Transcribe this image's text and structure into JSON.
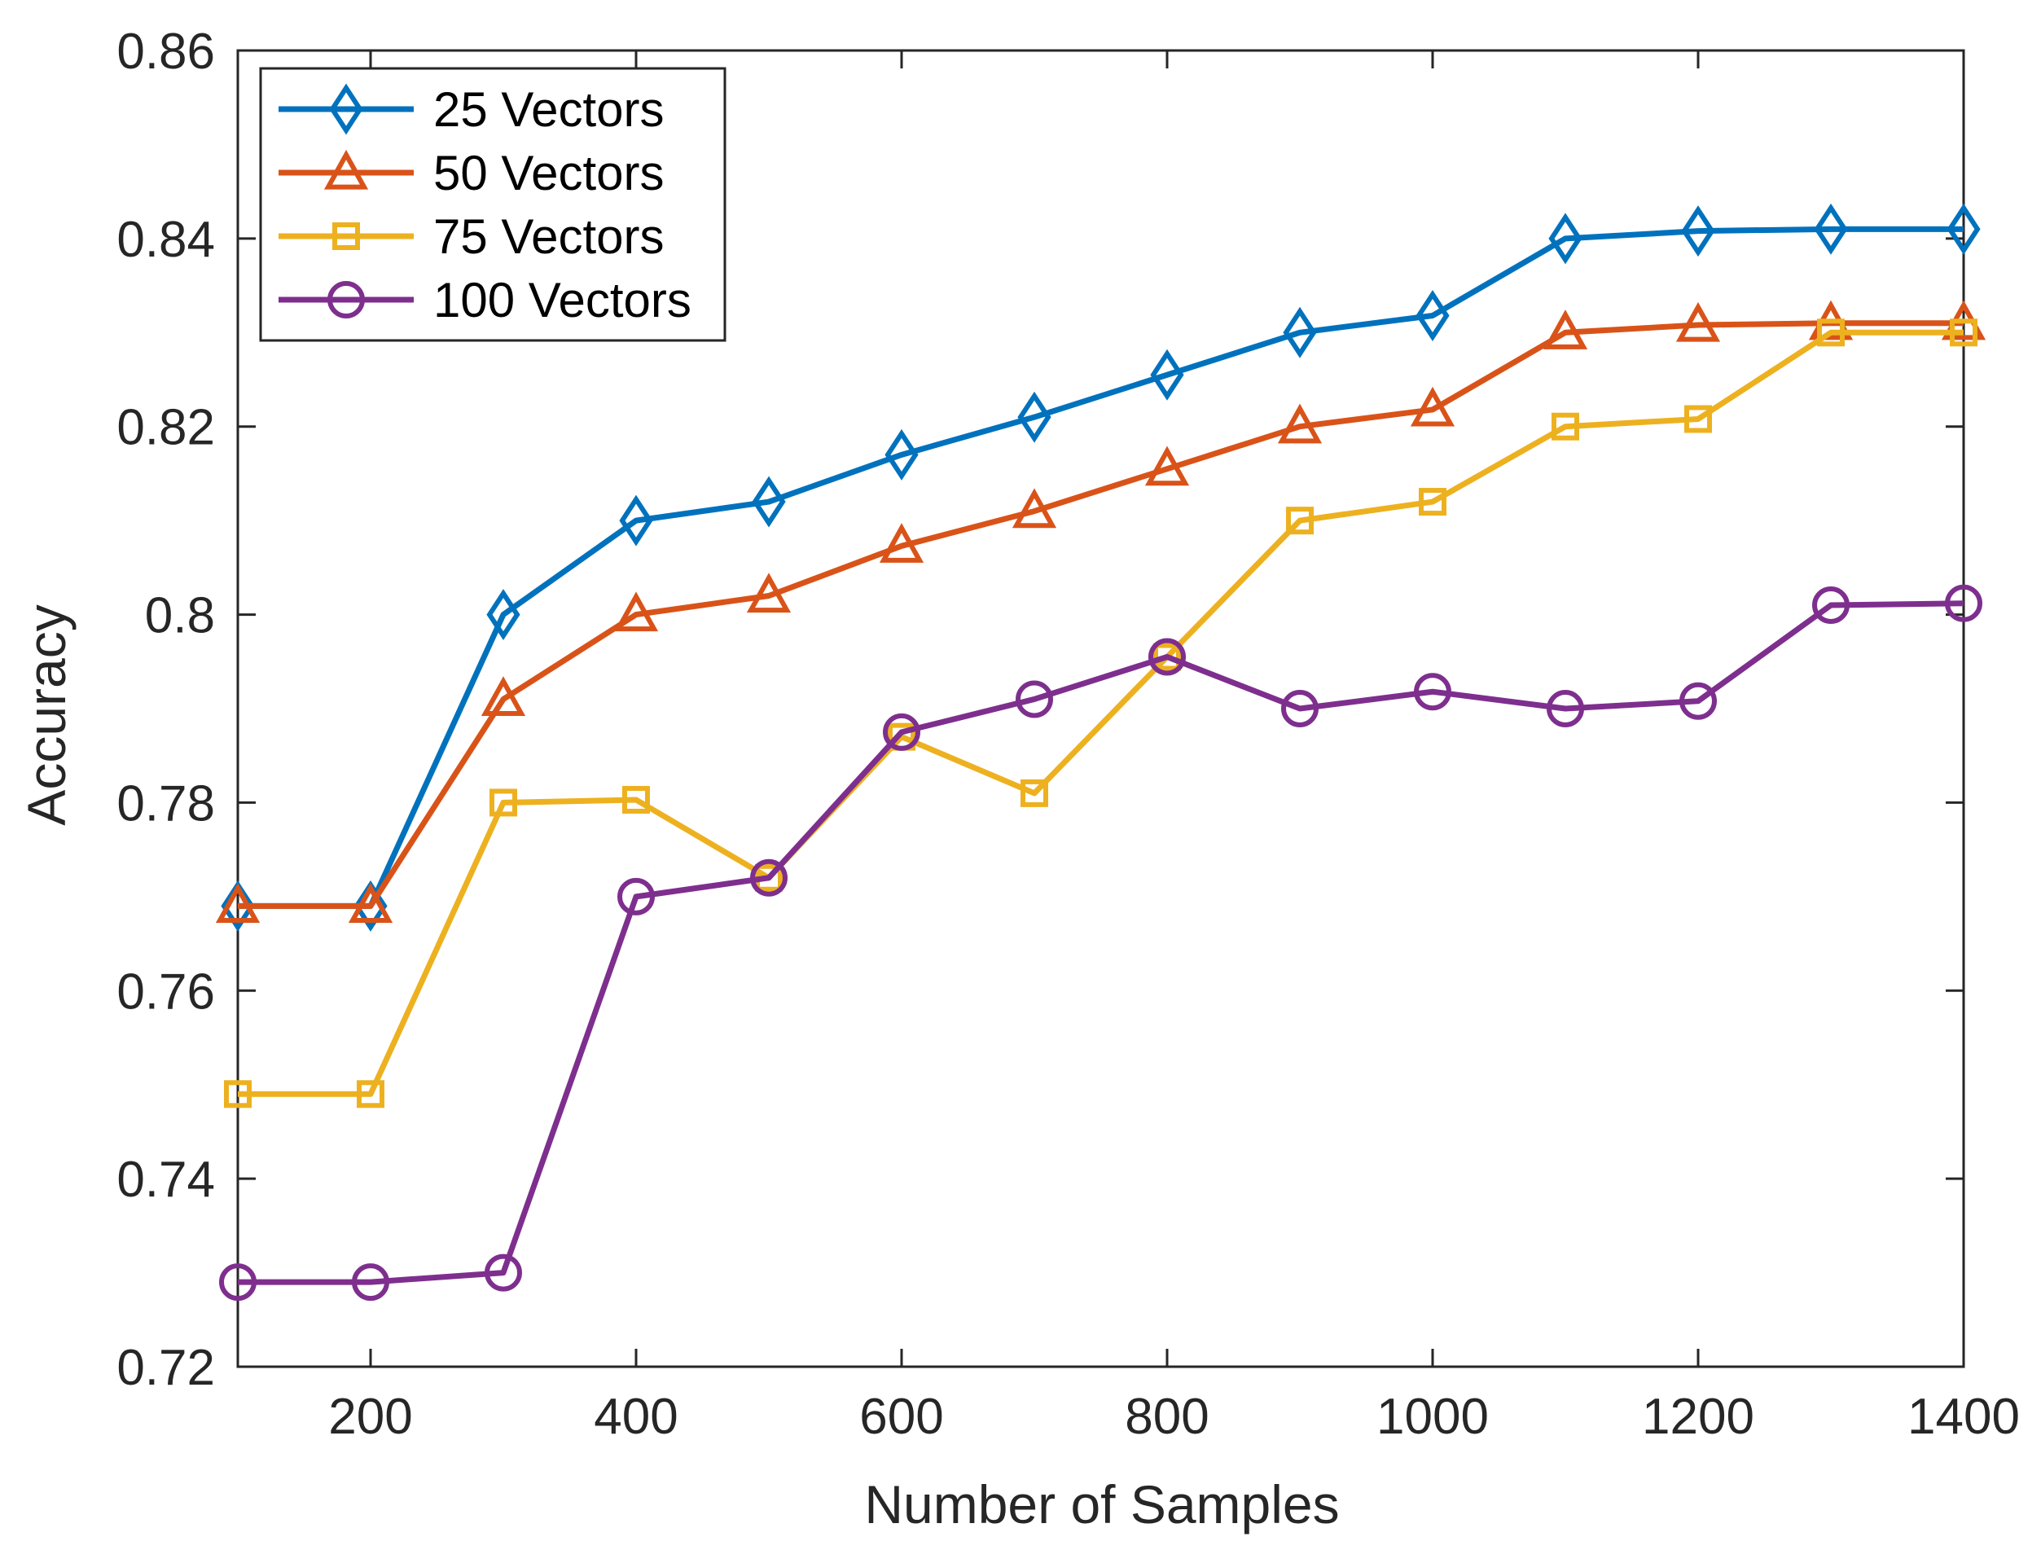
{
  "chart_data": {
    "type": "line",
    "title": "",
    "xlabel": "Number of Samples",
    "ylabel": "Accuracy",
    "xlim": [
      100,
      1400
    ],
    "ylim": [
      0.72,
      0.86
    ],
    "xticks": [
      200,
      400,
      600,
      800,
      1000,
      1200,
      1400
    ],
    "xtick_labels": [
      "200",
      "400",
      "600",
      "800",
      "1000",
      "1200",
      "1400"
    ],
    "yticks": [
      0.72,
      0.74,
      0.76,
      0.78,
      0.8,
      0.82,
      0.84,
      0.86
    ],
    "ytick_labels": [
      "0.72",
      "0.74",
      "0.76",
      "0.78",
      "0.8",
      "0.82",
      "0.84",
      "0.86"
    ],
    "grid": false,
    "legend_position": "top-left",
    "x": [
      100,
      200,
      300,
      400,
      500,
      600,
      700,
      800,
      900,
      1000,
      1100,
      1200,
      1300,
      1400
    ],
    "series": [
      {
        "name": "25 Vectors",
        "color": "#0072BD",
        "marker": "diamond",
        "values": [
          0.769,
          0.769,
          0.8,
          0.81,
          0.812,
          0.817,
          0.821,
          0.8255,
          0.83,
          0.8318,
          0.84,
          0.8408,
          0.841,
          0.841
        ]
      },
      {
        "name": "50 Vectors",
        "color": "#D95319",
        "marker": "triangle",
        "values": [
          0.769,
          0.769,
          0.791,
          0.8,
          0.802,
          0.8073,
          0.811,
          0.8155,
          0.82,
          0.8218,
          0.83,
          0.8308,
          0.831,
          0.831
        ]
      },
      {
        "name": "75 Vectors",
        "color": "#EDB120",
        "marker": "square",
        "values": [
          0.749,
          0.749,
          0.78,
          0.7803,
          0.772,
          0.787,
          0.781,
          0.7955,
          0.81,
          0.812,
          0.82,
          0.8208,
          0.83,
          0.83
        ]
      },
      {
        "name": "100 Vectors",
        "color": "#7E2F8E",
        "marker": "circle",
        "values": [
          0.729,
          0.729,
          0.73,
          0.77,
          0.772,
          0.7875,
          0.791,
          0.7955,
          0.79,
          0.7918,
          0.79,
          0.7908,
          0.801,
          0.8012
        ]
      }
    ]
  }
}
